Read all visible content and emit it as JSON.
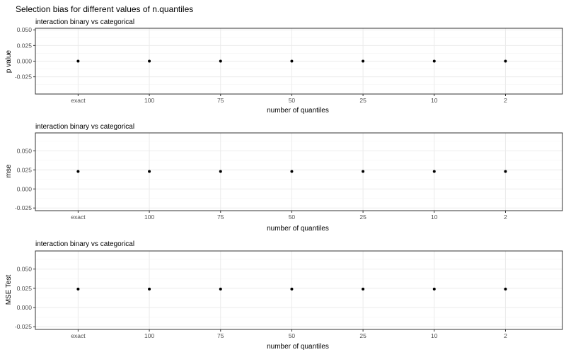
{
  "title": "Selection bias for different values of n.quantiles",
  "chart_data": [
    {
      "type": "scatter",
      "subtitle": "interaction binary vs categorical",
      "xlabel": "number of quantiles",
      "ylabel": "p value",
      "categories": [
        "exact",
        "100",
        "75",
        "50",
        "25",
        "10",
        "2"
      ],
      "values": [
        0.0,
        0.0,
        0.0,
        0.0,
        0.0,
        0.0,
        0.0
      ],
      "ylim": [
        -0.0525,
        0.0525
      ],
      "yticks": [
        -0.025,
        0.0,
        0.025,
        0.05
      ],
      "ytick_labels": [
        "-0.025",
        "0.000",
        "0.025",
        "0.050"
      ],
      "grid": true
    },
    {
      "type": "scatter",
      "subtitle": "interaction binary vs categorical",
      "xlabel": "number of quantiles",
      "ylabel": "mse",
      "categories": [
        "exact",
        "100",
        "75",
        "50",
        "25",
        "10",
        "2"
      ],
      "values": [
        0.023,
        0.023,
        0.023,
        0.023,
        0.023,
        0.023,
        0.023
      ],
      "ylim": [
        -0.0285,
        0.0735
      ],
      "yticks": [
        -0.025,
        0.0,
        0.025,
        0.05
      ],
      "ytick_labels": [
        "-0.025",
        "0.000",
        "0.025",
        "0.050"
      ],
      "grid": true
    },
    {
      "type": "scatter",
      "subtitle": "interaction binary vs categorical",
      "xlabel": "number of quantiles",
      "ylabel": "MSE Test",
      "categories": [
        "exact",
        "100",
        "75",
        "50",
        "25",
        "10",
        "2"
      ],
      "values": [
        0.024,
        0.024,
        0.024,
        0.024,
        0.024,
        0.024,
        0.024
      ],
      "ylim": [
        -0.0285,
        0.0735
      ],
      "yticks": [
        -0.025,
        0.0,
        0.025,
        0.05
      ],
      "ytick_labels": [
        "-0.025",
        "0.000",
        "0.025",
        "0.050"
      ],
      "grid": true
    }
  ]
}
